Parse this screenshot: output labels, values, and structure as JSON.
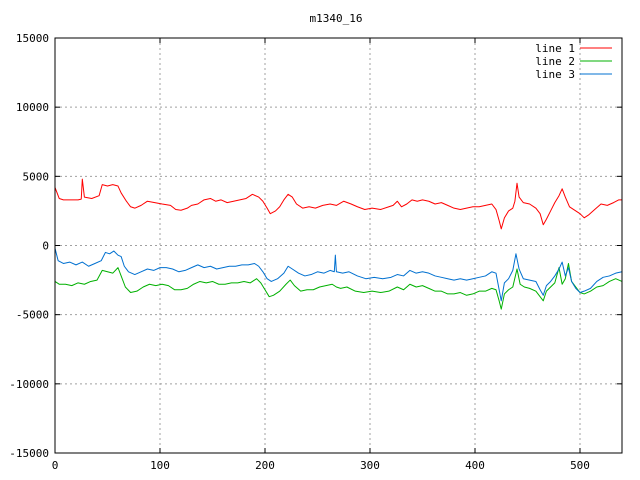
{
  "chart_data": {
    "type": "line",
    "title": "m1340_16",
    "xlabel": "",
    "ylabel": "",
    "xlim": [
      0,
      540
    ],
    "ylim": [
      -15000,
      15000
    ],
    "x_ticks": [
      0,
      100,
      200,
      300,
      400,
      500
    ],
    "y_ticks": [
      -15000,
      -10000,
      -5000,
      0,
      5000,
      10000,
      15000
    ],
    "x_tick_labels": [
      "0",
      "100",
      "200",
      "300",
      "400",
      "500"
    ],
    "y_tick_labels": [
      "-15000",
      "-10000",
      "-5000",
      "0",
      "5000",
      "10000",
      "15000"
    ],
    "grid": true,
    "legend": "top-right",
    "series": [
      {
        "name": "line 1",
        "color": "#ff0000",
        "points": [
          [
            0,
            4200
          ],
          [
            4,
            3400
          ],
          [
            8,
            3300
          ],
          [
            15,
            3300
          ],
          [
            22,
            3300
          ],
          [
            25,
            3350
          ],
          [
            26,
            4800
          ],
          [
            28,
            3500
          ],
          [
            35,
            3400
          ],
          [
            42,
            3600
          ],
          [
            45,
            4400
          ],
          [
            50,
            4300
          ],
          [
            55,
            4400
          ],
          [
            60,
            4300
          ],
          [
            63,
            3800
          ],
          [
            68,
            3200
          ],
          [
            72,
            2800
          ],
          [
            76,
            2700
          ],
          [
            82,
            2900
          ],
          [
            88,
            3200
          ],
          [
            95,
            3100
          ],
          [
            102,
            3000
          ],
          [
            110,
            2900
          ],
          [
            115,
            2600
          ],
          [
            120,
            2550
          ],
          [
            126,
            2700
          ],
          [
            130,
            2900
          ],
          [
            136,
            3000
          ],
          [
            142,
            3300
          ],
          [
            148,
            3400
          ],
          [
            153,
            3200
          ],
          [
            158,
            3300
          ],
          [
            164,
            3100
          ],
          [
            170,
            3200
          ],
          [
            176,
            3300
          ],
          [
            182,
            3400
          ],
          [
            188,
            3700
          ],
          [
            194,
            3500
          ],
          [
            198,
            3200
          ],
          [
            202,
            2700
          ],
          [
            205,
            2300
          ],
          [
            210,
            2500
          ],
          [
            214,
            2800
          ],
          [
            218,
            3300
          ],
          [
            222,
            3700
          ],
          [
            226,
            3500
          ],
          [
            230,
            3000
          ],
          [
            236,
            2700
          ],
          [
            242,
            2800
          ],
          [
            248,
            2700
          ],
          [
            255,
            2900
          ],
          [
            262,
            3000
          ],
          [
            268,
            2900
          ],
          [
            275,
            3200
          ],
          [
            282,
            3000
          ],
          [
            288,
            2800
          ],
          [
            295,
            2600
          ],
          [
            302,
            2700
          ],
          [
            310,
            2600
          ],
          [
            318,
            2800
          ],
          [
            322,
            2900
          ],
          [
            326,
            3200
          ],
          [
            330,
            2800
          ],
          [
            335,
            3000
          ],
          [
            340,
            3300
          ],
          [
            345,
            3200
          ],
          [
            350,
            3300
          ],
          [
            356,
            3200
          ],
          [
            362,
            3000
          ],
          [
            368,
            3100
          ],
          [
            374,
            2900
          ],
          [
            380,
            2700
          ],
          [
            386,
            2600
          ],
          [
            392,
            2700
          ],
          [
            398,
            2800
          ],
          [
            404,
            2800
          ],
          [
            410,
            2900
          ],
          [
            416,
            3000
          ],
          [
            420,
            2600
          ],
          [
            423,
            1800
          ],
          [
            425,
            1200
          ],
          [
            428,
            2000
          ],
          [
            432,
            2500
          ],
          [
            436,
            2700
          ],
          [
            438,
            3200
          ],
          [
            440,
            4500
          ],
          [
            442,
            3500
          ],
          [
            446,
            3100
          ],
          [
            452,
            3000
          ],
          [
            458,
            2700
          ],
          [
            462,
            2300
          ],
          [
            465,
            1500
          ],
          [
            468,
            1900
          ],
          [
            472,
            2500
          ],
          [
            476,
            3100
          ],
          [
            480,
            3600
          ],
          [
            483,
            4100
          ],
          [
            486,
            3500
          ],
          [
            490,
            2800
          ],
          [
            496,
            2500
          ],
          [
            500,
            2300
          ],
          [
            504,
            2000
          ],
          [
            508,
            2200
          ],
          [
            514,
            2600
          ],
          [
            520,
            3000
          ],
          [
            526,
            2900
          ],
          [
            532,
            3100
          ],
          [
            537,
            3300
          ],
          [
            540,
            3300
          ]
        ]
      },
      {
        "name": "line 2",
        "color": "#00b000",
        "points": [
          [
            0,
            -2600
          ],
          [
            4,
            -2800
          ],
          [
            10,
            -2800
          ],
          [
            16,
            -2900
          ],
          [
            22,
            -2700
          ],
          [
            28,
            -2800
          ],
          [
            34,
            -2600
          ],
          [
            40,
            -2500
          ],
          [
            45,
            -1800
          ],
          [
            50,
            -1900
          ],
          [
            55,
            -2000
          ],
          [
            60,
            -1600
          ],
          [
            63,
            -2200
          ],
          [
            67,
            -3000
          ],
          [
            72,
            -3400
          ],
          [
            78,
            -3300
          ],
          [
            84,
            -3000
          ],
          [
            90,
            -2800
          ],
          [
            96,
            -2900
          ],
          [
            102,
            -2800
          ],
          [
            108,
            -2900
          ],
          [
            114,
            -3200
          ],
          [
            120,
            -3200
          ],
          [
            126,
            -3100
          ],
          [
            132,
            -2800
          ],
          [
            138,
            -2600
          ],
          [
            144,
            -2700
          ],
          [
            150,
            -2600
          ],
          [
            156,
            -2800
          ],
          [
            162,
            -2800
          ],
          [
            168,
            -2700
          ],
          [
            174,
            -2700
          ],
          [
            180,
            -2600
          ],
          [
            186,
            -2700
          ],
          [
            192,
            -2400
          ],
          [
            196,
            -2700
          ],
          [
            200,
            -3200
          ],
          [
            204,
            -3700
          ],
          [
            208,
            -3600
          ],
          [
            214,
            -3300
          ],
          [
            220,
            -2800
          ],
          [
            224,
            -2500
          ],
          [
            228,
            -2900
          ],
          [
            234,
            -3300
          ],
          [
            240,
            -3200
          ],
          [
            246,
            -3200
          ],
          [
            252,
            -3000
          ],
          [
            258,
            -2900
          ],
          [
            264,
            -2800
          ],
          [
            268,
            -3000
          ],
          [
            272,
            -3100
          ],
          [
            278,
            -3000
          ],
          [
            286,
            -3300
          ],
          [
            294,
            -3400
          ],
          [
            302,
            -3300
          ],
          [
            310,
            -3400
          ],
          [
            318,
            -3300
          ],
          [
            326,
            -3000
          ],
          [
            332,
            -3200
          ],
          [
            338,
            -2800
          ],
          [
            344,
            -3000
          ],
          [
            350,
            -2900
          ],
          [
            356,
            -3100
          ],
          [
            362,
            -3300
          ],
          [
            368,
            -3300
          ],
          [
            374,
            -3500
          ],
          [
            380,
            -3500
          ],
          [
            386,
            -3400
          ],
          [
            392,
            -3600
          ],
          [
            398,
            -3500
          ],
          [
            404,
            -3300
          ],
          [
            410,
            -3300
          ],
          [
            416,
            -3100
          ],
          [
            420,
            -3200
          ],
          [
            423,
            -4000
          ],
          [
            425,
            -4600
          ],
          [
            428,
            -3500
          ],
          [
            432,
            -3200
          ],
          [
            436,
            -3000
          ],
          [
            440,
            -1700
          ],
          [
            443,
            -2800
          ],
          [
            447,
            -3000
          ],
          [
            452,
            -3100
          ],
          [
            458,
            -3300
          ],
          [
            462,
            -3700
          ],
          [
            465,
            -4000
          ],
          [
            468,
            -3300
          ],
          [
            472,
            -3000
          ],
          [
            476,
            -2700
          ],
          [
            480,
            -1600
          ],
          [
            483,
            -2800
          ],
          [
            486,
            -2400
          ],
          [
            489,
            -1300
          ],
          [
            492,
            -2600
          ],
          [
            496,
            -3000
          ],
          [
            500,
            -3400
          ],
          [
            504,
            -3500
          ],
          [
            510,
            -3300
          ],
          [
            516,
            -3000
          ],
          [
            522,
            -2900
          ],
          [
            528,
            -2600
          ],
          [
            534,
            -2400
          ],
          [
            540,
            -2600
          ]
        ]
      },
      {
        "name": "line 3",
        "color": "#0070d0",
        "points": [
          [
            0,
            -200
          ],
          [
            3,
            -1100
          ],
          [
            8,
            -1300
          ],
          [
            14,
            -1200
          ],
          [
            20,
            -1400
          ],
          [
            26,
            -1200
          ],
          [
            32,
            -1500
          ],
          [
            38,
            -1300
          ],
          [
            44,
            -1100
          ],
          [
            48,
            -500
          ],
          [
            52,
            -600
          ],
          [
            56,
            -400
          ],
          [
            60,
            -700
          ],
          [
            63,
            -800
          ],
          [
            66,
            -1500
          ],
          [
            70,
            -1900
          ],
          [
            76,
            -2100
          ],
          [
            82,
            -1900
          ],
          [
            88,
            -1700
          ],
          [
            94,
            -1800
          ],
          [
            100,
            -1600
          ],
          [
            106,
            -1600
          ],
          [
            112,
            -1700
          ],
          [
            118,
            -1900
          ],
          [
            124,
            -1800
          ],
          [
            130,
            -1600
          ],
          [
            136,
            -1400
          ],
          [
            142,
            -1600
          ],
          [
            148,
            -1500
          ],
          [
            154,
            -1700
          ],
          [
            160,
            -1600
          ],
          [
            166,
            -1500
          ],
          [
            172,
            -1500
          ],
          [
            178,
            -1400
          ],
          [
            184,
            -1400
          ],
          [
            190,
            -1300
          ],
          [
            194,
            -1500
          ],
          [
            198,
            -1900
          ],
          [
            202,
            -2400
          ],
          [
            206,
            -2600
          ],
          [
            212,
            -2400
          ],
          [
            218,
            -2000
          ],
          [
            222,
            -1500
          ],
          [
            226,
            -1700
          ],
          [
            232,
            -2000
          ],
          [
            238,
            -2200
          ],
          [
            244,
            -2100
          ],
          [
            250,
            -1900
          ],
          [
            256,
            -2000
          ],
          [
            262,
            -1800
          ],
          [
            266,
            -1900
          ],
          [
            267,
            -700
          ],
          [
            268,
            -1900
          ],
          [
            274,
            -2000
          ],
          [
            280,
            -1900
          ],
          [
            288,
            -2200
          ],
          [
            296,
            -2400
          ],
          [
            304,
            -2300
          ],
          [
            312,
            -2400
          ],
          [
            320,
            -2300
          ],
          [
            326,
            -2100
          ],
          [
            332,
            -2200
          ],
          [
            338,
            -1800
          ],
          [
            344,
            -2000
          ],
          [
            350,
            -1900
          ],
          [
            356,
            -2000
          ],
          [
            362,
            -2200
          ],
          [
            368,
            -2300
          ],
          [
            374,
            -2400
          ],
          [
            380,
            -2500
          ],
          [
            386,
            -2400
          ],
          [
            392,
            -2500
          ],
          [
            398,
            -2400
          ],
          [
            404,
            -2300
          ],
          [
            410,
            -2200
          ],
          [
            416,
            -1900
          ],
          [
            420,
            -2000
          ],
          [
            423,
            -3200
          ],
          [
            425,
            -4000
          ],
          [
            428,
            -2700
          ],
          [
            432,
            -2400
          ],
          [
            436,
            -1800
          ],
          [
            439,
            -600
          ],
          [
            442,
            -1700
          ],
          [
            446,
            -2400
          ],
          [
            452,
            -2500
          ],
          [
            458,
            -2600
          ],
          [
            462,
            -3200
          ],
          [
            465,
            -3600
          ],
          [
            468,
            -2900
          ],
          [
            472,
            -2600
          ],
          [
            476,
            -2200
          ],
          [
            480,
            -1700
          ],
          [
            483,
            -1200
          ],
          [
            486,
            -2200
          ],
          [
            489,
            -1600
          ],
          [
            492,
            -2600
          ],
          [
            496,
            -3100
          ],
          [
            500,
            -3400
          ],
          [
            504,
            -3300
          ],
          [
            510,
            -3100
          ],
          [
            516,
            -2600
          ],
          [
            522,
            -2300
          ],
          [
            528,
            -2200
          ],
          [
            534,
            -2000
          ],
          [
            540,
            -1900
          ]
        ]
      }
    ]
  }
}
